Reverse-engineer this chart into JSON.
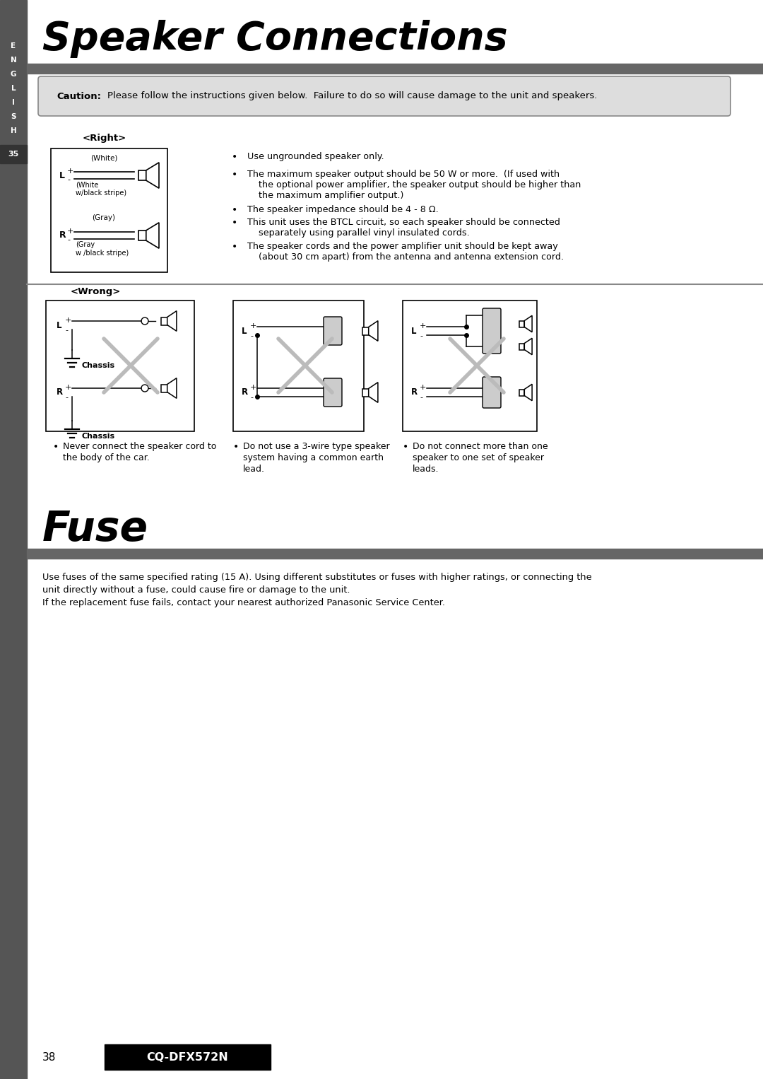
{
  "title": "Speaker Connections",
  "fuse_title": "Fuse",
  "page_num": "38",
  "model": "CQ-DFX572N",
  "sidebar_text": [
    "E",
    "N",
    "G",
    "L",
    "I",
    "S",
    "H"
  ],
  "sidebar_num": "35",
  "caution_text": "Please follow the instructions given below.  Failure to do so will cause damage to the unit and speakers.",
  "right_label": "<Right>",
  "wrong_label": "<Wrong>",
  "right_bullets": [
    "Use ungrounded speaker only.",
    "The maximum speaker output should be 50 W or more.  (If used with\n    the optional power amplifier, the speaker output should be higher than\n    the maximum amplifier output.)",
    "The speaker impedance should be 4 - 8 Ω.",
    "This unit uses the BTCL circuit, so each speaker should be connected\n    separately using parallel vinyl insulated cords.",
    "The speaker cords and the power amplifier unit should be kept away\n    (about 30 cm apart) from the antenna and antenna extension cord."
  ],
  "wrong_bullets": [
    "Never connect the speaker cord to\nthe body of the car.",
    "Do not use a 3-wire type speaker\nsystem having a common earth\nlead.",
    "Do not connect more than one\nspeaker to one set of speaker\nleads."
  ],
  "fuse_text_line1": "Use fuses of the same specified rating (15 A). Using different substitutes or fuses with higher ratings, or connecting the",
  "fuse_text_line2": "unit directly without a fuse, could cause fire or damage to the unit.",
  "fuse_text_line3": "If the replacement fuse fails, contact your nearest authorized Panasonic Service Center.",
  "bg_color": "#ffffff",
  "sidebar_bg": "#555555",
  "header_bar_color": "#666666",
  "caution_box_bg": "#dddddd",
  "title_color": "#000000",
  "text_color": "#000000"
}
